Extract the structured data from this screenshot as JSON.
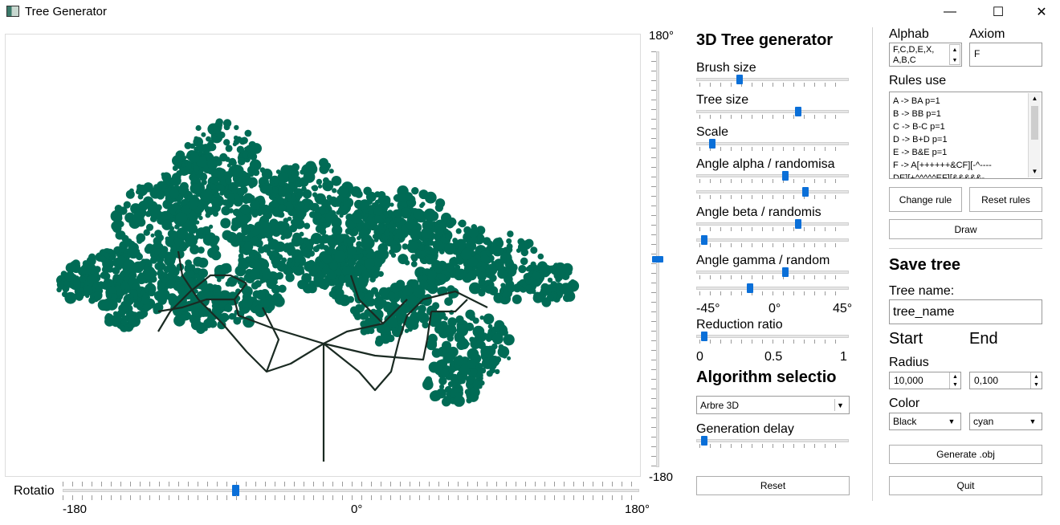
{
  "window": {
    "title": "Tree Generator",
    "minimize": "—",
    "maximize": "☐",
    "close": "✕"
  },
  "viewport": {
    "tree_color": "#006b55",
    "branch_color": "#1a2a22",
    "vertical_slider": {
      "top_label": "180°",
      "bottom_label": "-180",
      "value_fraction": 0.5
    },
    "rotation": {
      "label": "Rotatio",
      "min_label": "-180",
      "mid_label": "0°",
      "max_label": "180°",
      "value_fraction": 0.3
    }
  },
  "generator": {
    "heading": "3D Tree generator",
    "brush_size": {
      "label": "Brush size",
      "value": 0.27
    },
    "tree_size": {
      "label": "Tree size",
      "value": 0.68
    },
    "scale": {
      "label": "Scale",
      "value": 0.08
    },
    "angle_alpha": {
      "label": "Angle alpha / randomisa",
      "value": 0.59,
      "random": 0.73
    },
    "angle_beta": {
      "label": "Angle beta  / randomis",
      "value": 0.68,
      "random": 0.02
    },
    "angle_gamma": {
      "label": "Angle gamma  / random",
      "value": 0.59,
      "random": 0.34
    },
    "angle_scale": {
      "min": "-45°",
      "mid": "0°",
      "max": "45°"
    },
    "reduction_ratio": {
      "label": "Reduction ratio",
      "value": 0.02,
      "min": "0",
      "mid": "0.5",
      "max": "1"
    },
    "algorithm_heading": "Algorithm selectio",
    "algorithm_value": "Arbre 3D",
    "generation_delay": {
      "label": "Generation delay",
      "value": 0.02
    },
    "reset_label": "Reset"
  },
  "lsystem": {
    "alphabet_label": "Alphab",
    "alphabet_value": "F,C,D,E,X,",
    "alphabet_value2": "A,B,C",
    "axiom_label": "Axiom",
    "axiom_value": "F",
    "rules_label": "Rules use",
    "rules": [
      "A -> BA p=1",
      "B -> BB p=1",
      "C -> B-C p=1",
      "D -> B+D p=1",
      "E -> B&E p=1",
      "F -> A[++++++&CF][-^----",
      "DE][+^^^^^EF][&&&&&-"
    ],
    "change_rule_label": "Change rule",
    "reset_rules_label": "Reset rules",
    "draw_label": "Draw"
  },
  "save": {
    "heading": "Save tree",
    "tree_name_label": "Tree name:",
    "tree_name_value": "tree_name",
    "start_label": "Start",
    "end_label": "End",
    "radius_label": "Radius",
    "radius_start": "10,000",
    "radius_end": "0,100",
    "color_label": "Color",
    "color_start": "Black",
    "color_end": "cyan",
    "generate_label": "Generate .obj",
    "quit_label": "Quit"
  }
}
